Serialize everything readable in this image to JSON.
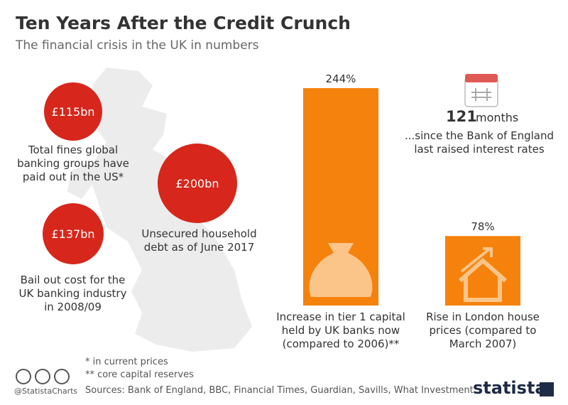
{
  "chart_data": {
    "type": "bar",
    "title": "Ten Years After the Credit Crunch",
    "subtitle": "The financial crisis in the UK in numbers",
    "categories": [
      "Increase in tier 1 capital held by UK banks now (compared to 2006)**",
      "Rise in London house prices (compared to March 2007)"
    ],
    "values": [
      244,
      78
    ],
    "value_labels": [
      "244%",
      "78%"
    ],
    "color": "#f5820d"
  },
  "stats": [
    {
      "value": "£115bn",
      "label": "Total fines global banking groups have paid out in the US*"
    },
    {
      "value": "£200bn",
      "label": "Unsecured household debt as of June 2017"
    },
    {
      "value": "£137bn",
      "label": "Bail out cost for the UK banking industry in 2008/09"
    }
  ],
  "months": {
    "number": "121",
    "unit": "months",
    "text": "...since the Bank of England last raised interest rates"
  },
  "notes": [
    "*   in current prices",
    "** core capital reserves"
  ],
  "sources": "Sources: Bank of England, BBC, Financial Times, Guardian, Savills, What Investment",
  "handle": "@StatistaCharts",
  "brand": "statista"
}
